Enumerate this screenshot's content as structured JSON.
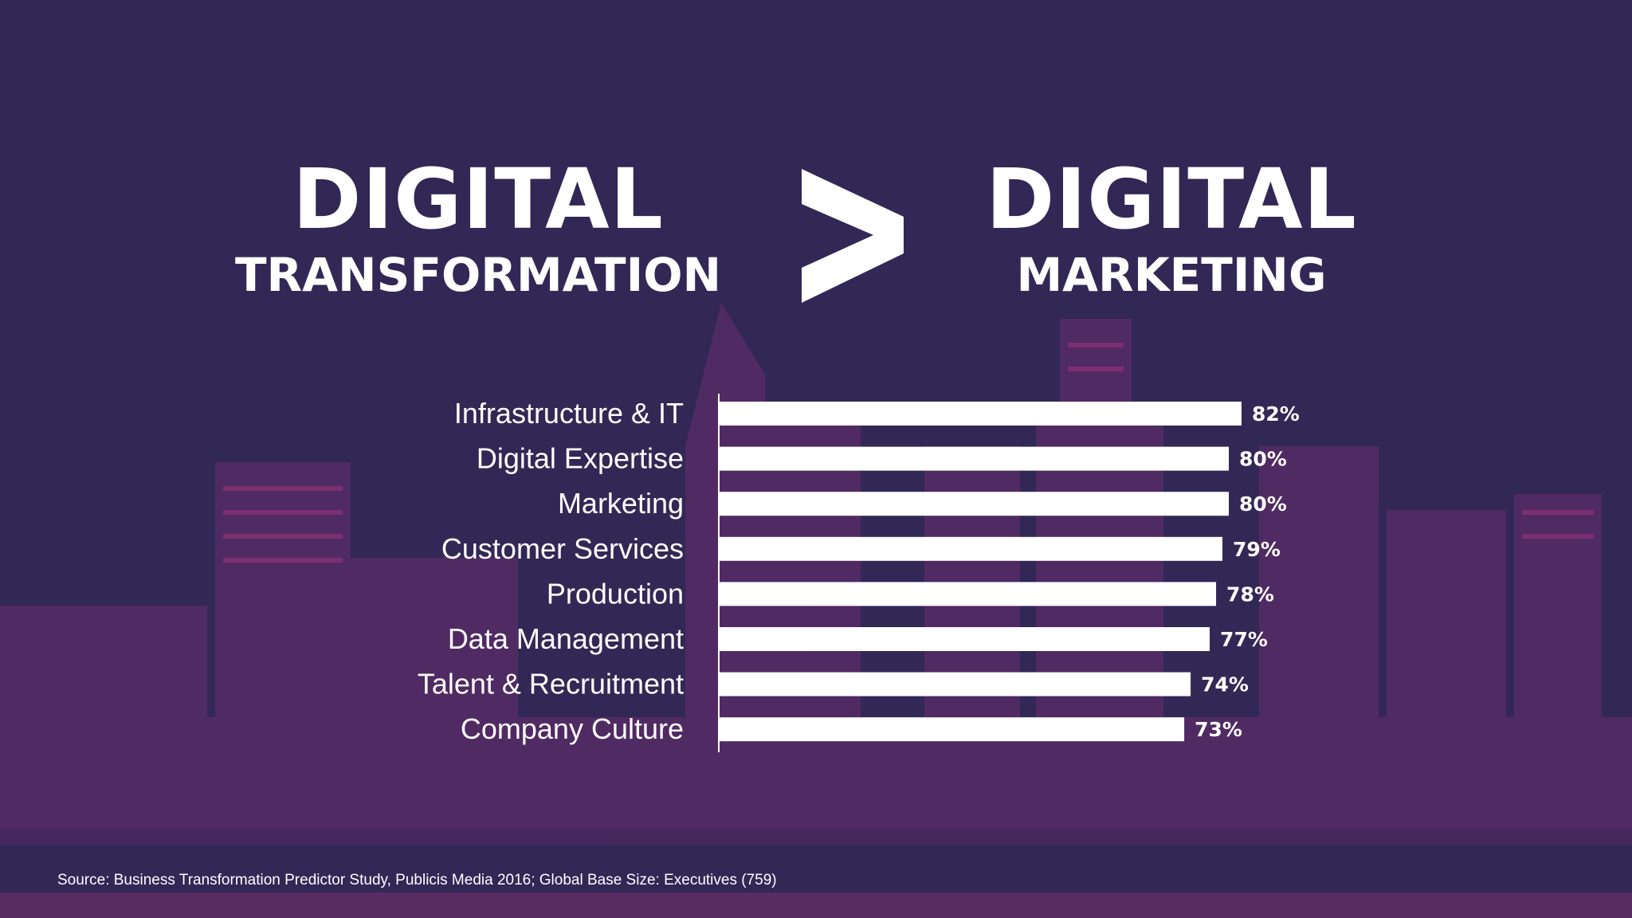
{
  "headline": {
    "left_big": "DIGITAL",
    "left_small": "TRANSFORMATION",
    "operator": ">",
    "right_big": "DIGITAL",
    "right_small": "MARKETING"
  },
  "chart_data": {
    "type": "bar",
    "orientation": "horizontal",
    "categories": [
      "Infrastructure & IT",
      "Digital Expertise",
      "Marketing",
      "Customer Services",
      "Production",
      "Data Management",
      "Talent & Recruitment",
      "Company Culture"
    ],
    "values": [
      82,
      80,
      80,
      79,
      78,
      77,
      74,
      73
    ],
    "value_labels": [
      "82%",
      "80%",
      "80%",
      "79%",
      "78%",
      "77%",
      "74%",
      "73%"
    ],
    "unit": "%",
    "grid": false,
    "bar_color": "#ffffff"
  },
  "source": "Source: Business Transformation Predictor Study, Publicis Media 2016; Global Base Size: Executives (759)",
  "colors": {
    "background": "#322856",
    "city_accent": "#a8357f",
    "text": "#ffffff"
  }
}
